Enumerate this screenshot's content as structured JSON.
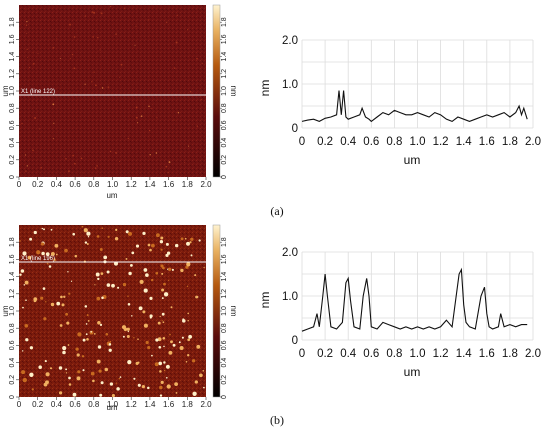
{
  "panels": [
    {
      "caption": "(a)",
      "afm": {
        "scan_line_label": "X1 (line 122)",
        "scan_line_y": 0.9,
        "xlabel": "um",
        "ylabel": "um",
        "x_ticks": [
          "0",
          "0.2",
          "0.4",
          "0.6",
          "0.8",
          "1.0",
          "1.2",
          "1.4",
          "1.6",
          "1.8",
          "2.0"
        ],
        "y_ticks": [
          "0",
          "0.2",
          "0.4",
          "0.6",
          "0.8",
          "1.0",
          "1.2",
          "1.4",
          "1.6",
          "1.8"
        ],
        "colorbar_label": "nm",
        "colorbar_ticks": [
          "0",
          "0.2",
          "0.4",
          "0.6",
          "0.8",
          "1.0",
          "1.2",
          "1.4",
          "1.6",
          "1.8"
        ]
      }
    },
    {
      "caption": "(b)",
      "afm": {
        "scan_line_label": "X1 (line 196)",
        "scan_line_y": 1.53,
        "xlabel": "um",
        "ylabel": "um",
        "x_ticks": [
          "0",
          "0.2",
          "0.4",
          "0.6",
          "0.8",
          "1.0",
          "1.2",
          "1.4",
          "1.6",
          "1.8",
          "2.0"
        ],
        "y_ticks": [
          "0",
          "0.2",
          "0.4",
          "0.6",
          "0.8",
          "1.0",
          "1.2",
          "1.4",
          "1.6",
          "1.8"
        ],
        "colorbar_label": "nm",
        "colorbar_ticks": [
          "0",
          "0.2",
          "0.4",
          "0.6",
          "0.8",
          "1.0",
          "1.2",
          "1.4",
          "1.6",
          "1.8"
        ]
      }
    }
  ],
  "chart_data": [
    {
      "type": "heatmap",
      "xlabel": "um",
      "ylabel": "um",
      "xlim": [
        0,
        2.0
      ],
      "ylim": [
        0,
        2.0
      ],
      "colorbar": {
        "label": "nm",
        "range": [
          0,
          2.0
        ]
      },
      "colors": {
        "low": "#000000",
        "mid": "#6b0f0f",
        "high": "#f5d090"
      }
    },
    {
      "type": "line",
      "xlabel": "um",
      "ylabel": "nm",
      "xlim": [
        0,
        2.0
      ],
      "ylim": [
        0,
        2.0
      ],
      "x_ticks": [
        "0",
        "0.2",
        "0.4",
        "0.6",
        "0.8",
        "1.0",
        "1.2",
        "1.4",
        "1.6",
        "1.8",
        "2.0"
      ],
      "y_ticks": [
        "0",
        "1.0",
        "2.0"
      ],
      "grid": true,
      "series": [
        {
          "x": [
            0,
            0.05,
            0.1,
            0.15,
            0.2,
            0.25,
            0.3,
            0.32,
            0.34,
            0.36,
            0.38,
            0.4,
            0.45,
            0.5,
            0.52,
            0.55,
            0.58,
            0.6,
            0.65,
            0.7,
            0.75,
            0.8,
            0.85,
            0.9,
            0.95,
            1.0,
            1.05,
            1.1,
            1.15,
            1.2,
            1.25,
            1.3,
            1.35,
            1.4,
            1.45,
            1.5,
            1.55,
            1.6,
            1.65,
            1.7,
            1.75,
            1.8,
            1.85,
            1.88,
            1.9,
            1.92,
            1.95
          ],
          "y": [
            0.15,
            0.18,
            0.2,
            0.15,
            0.22,
            0.25,
            0.3,
            0.85,
            0.3,
            0.85,
            0.25,
            0.2,
            0.25,
            0.3,
            0.45,
            0.25,
            0.2,
            0.15,
            0.25,
            0.35,
            0.3,
            0.4,
            0.35,
            0.3,
            0.3,
            0.35,
            0.3,
            0.25,
            0.35,
            0.3,
            0.2,
            0.15,
            0.25,
            0.2,
            0.15,
            0.2,
            0.25,
            0.3,
            0.25,
            0.3,
            0.35,
            0.25,
            0.35,
            0.5,
            0.3,
            0.45,
            0.2
          ]
        }
      ]
    },
    {
      "type": "heatmap",
      "xlabel": "um",
      "ylabel": "um",
      "xlim": [
        0,
        2.0
      ],
      "ylim": [
        0,
        2.0
      ],
      "colorbar": {
        "label": "nm",
        "range": [
          0,
          2.0
        ]
      },
      "colors": {
        "low": "#000000",
        "mid": "#7a1a0a",
        "high": "#fbe6b0"
      }
    },
    {
      "type": "line",
      "xlabel": "um",
      "ylabel": "nm",
      "xlim": [
        0,
        2.0
      ],
      "ylim": [
        0,
        2.0
      ],
      "x_ticks": [
        "0",
        "0.2",
        "0.4",
        "0.6",
        "0.8",
        "1.0",
        "1.2",
        "1.4",
        "1.6",
        "1.8",
        "2.0"
      ],
      "y_ticks": [
        "0",
        "1.0",
        "2.0"
      ],
      "grid": true,
      "series": [
        {
          "x": [
            0,
            0.05,
            0.1,
            0.13,
            0.15,
            0.18,
            0.2,
            0.22,
            0.25,
            0.3,
            0.35,
            0.38,
            0.4,
            0.42,
            0.45,
            0.5,
            0.53,
            0.56,
            0.58,
            0.6,
            0.65,
            0.7,
            0.75,
            0.8,
            0.85,
            0.9,
            0.95,
            1.0,
            1.05,
            1.1,
            1.15,
            1.2,
            1.25,
            1.3,
            1.33,
            1.36,
            1.38,
            1.4,
            1.42,
            1.45,
            1.5,
            1.55,
            1.58,
            1.6,
            1.62,
            1.65,
            1.7,
            1.72,
            1.75,
            1.8,
            1.85,
            1.9,
            1.95
          ],
          "y": [
            0.2,
            0.25,
            0.3,
            0.6,
            0.3,
            1.0,
            1.5,
            1.0,
            0.3,
            0.25,
            0.4,
            1.3,
            1.4,
            0.9,
            0.3,
            0.25,
            1.0,
            1.4,
            1.0,
            0.3,
            0.25,
            0.4,
            0.35,
            0.3,
            0.25,
            0.3,
            0.25,
            0.3,
            0.25,
            0.3,
            0.25,
            0.3,
            0.45,
            0.3,
            0.9,
            1.5,
            1.6,
            0.8,
            0.4,
            0.3,
            0.25,
            1.0,
            1.2,
            0.6,
            0.3,
            0.25,
            0.3,
            0.6,
            0.3,
            0.35,
            0.3,
            0.35,
            0.35
          ]
        }
      ]
    }
  ]
}
